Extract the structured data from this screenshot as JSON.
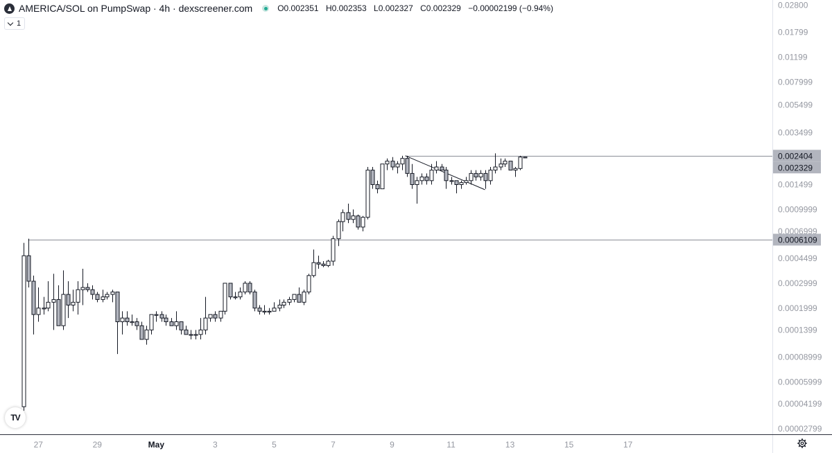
{
  "header": {
    "title": "AMERICA/SOL on PumpSwap · 4h · dexscreener.com",
    "ohlc": {
      "o_label": "O",
      "o": "0.002351",
      "h_label": "H",
      "h": "0.002353",
      "l_label": "L",
      "l": "0.002327",
      "c_label": "C",
      "c": "0.002329",
      "change": "−0.00002199 (−0.94%)"
    }
  },
  "indicator_button": {
    "count": "1"
  },
  "tv_logo": {
    "text": "TV"
  },
  "icons": {
    "logo": "app-logo-icon",
    "settings": "gear-icon",
    "status": "market-status-icon"
  },
  "colors": {
    "candle_up": "#ffffff",
    "candle_down": "#b2b5be",
    "outline": "#131722",
    "axis_text": "#9598a1",
    "price_tag": "#b2b5be"
  },
  "chart_data": {
    "type": "candlestick",
    "interval": "4h",
    "y_scale": "log",
    "y_ticks": [
      "0.02800",
      "0.01799",
      "0.01199",
      "0.007999",
      "0.005499",
      "0.003499",
      "0.001499",
      "0.0009999",
      "0.0006999",
      "0.0004499",
      "0.0002999",
      "0.0001999",
      "0.0001399",
      "0.00008999",
      "0.00005999",
      "0.00004199",
      "0.00002799"
    ],
    "y_tick_values": [
      0.028,
      0.01799,
      0.01199,
      0.007999,
      0.005499,
      0.003499,
      0.001499,
      0.0009999,
      0.0006999,
      0.0004499,
      0.0002999,
      0.0001999,
      0.0001399,
      8.999e-05,
      5.999e-05,
      4.199e-05,
      2.799e-05
    ],
    "x_ticks": [
      {
        "label": "27",
        "day": 27.0
      },
      {
        "label": "29",
        "day": 29.0
      },
      {
        "label": "May",
        "day": 31.0
      },
      {
        "label": "3",
        "day": 33.0
      },
      {
        "label": "5",
        "day": 35.0
      },
      {
        "label": "7",
        "day": 37.0
      },
      {
        "label": "9",
        "day": 39.0
      },
      {
        "label": "11",
        "day": 41.0
      },
      {
        "label": "13",
        "day": 43.0
      },
      {
        "label": "15",
        "day": 45.0
      },
      {
        "label": "17",
        "day": 47.0
      }
    ],
    "ylim": [
      2.55e-05,
      0.0305
    ],
    "xlim": [
      25.7,
      51.9
    ],
    "price_tags": [
      {
        "label": "0.002404",
        "value": 0.002404
      },
      {
        "label": "0.002329",
        "value": 0.002329
      },
      {
        "label": "0.0006109",
        "value": 0.0006109
      }
    ],
    "horizontal_lines": [
      {
        "value": 0.0006109,
        "from_day": 26.65
      },
      {
        "value": 0.002404,
        "from_day": 39.45
      }
    ],
    "trend_lines": [
      {
        "from": [
          39.45,
          0.002404
        ],
        "to": [
          42.15,
          0.00138
        ]
      }
    ],
    "candles": [
      {
        "day": 26.5,
        "o": 4e-05,
        "h": 0.00058,
        "l": 3.75e-05,
        "c": 0.00047
      },
      {
        "day": 26.67,
        "o": 0.00047,
        "h": 0.00062,
        "l": 0.00028,
        "c": 0.00031
      },
      {
        "day": 26.83,
        "o": 0.00031,
        "h": 0.00034,
        "l": 0.00013,
        "c": 0.00018
      },
      {
        "day": 27.0,
        "o": 0.00018,
        "h": 0.00028,
        "l": 0.00016,
        "c": 0.0002
      },
      {
        "day": 27.17,
        "o": 0.0002,
        "h": 0.00024,
        "l": 0.00018,
        "c": 0.0002
      },
      {
        "day": 27.33,
        "o": 0.0002,
        "h": 0.00031,
        "l": 0.00019,
        "c": 0.00022
      },
      {
        "day": 27.5,
        "o": 0.00022,
        "h": 0.00035,
        "l": 0.00014,
        "c": 0.00023
      },
      {
        "day": 27.67,
        "o": 0.00023,
        "h": 0.00029,
        "l": 0.00015,
        "c": 0.00015
      },
      {
        "day": 27.83,
        "o": 0.00015,
        "h": 0.00037,
        "l": 0.00014,
        "c": 0.00025
      },
      {
        "day": 28.0,
        "o": 0.00025,
        "h": 0.00031,
        "l": 0.00017,
        "c": 0.00021
      },
      {
        "day": 28.17,
        "o": 0.00021,
        "h": 0.00027,
        "l": 0.00019,
        "c": 0.00022
      },
      {
        "day": 28.33,
        "o": 0.00022,
        "h": 0.00031,
        "l": 0.00018,
        "c": 0.00027
      },
      {
        "day": 28.5,
        "o": 0.00027,
        "h": 0.00038,
        "l": 0.00021,
        "c": 0.00028
      },
      {
        "day": 28.67,
        "o": 0.00028,
        "h": 0.0003,
        "l": 0.00026,
        "c": 0.00027
      },
      {
        "day": 28.83,
        "o": 0.00027,
        "h": 0.00029,
        "l": 0.00023,
        "c": 0.00025
      },
      {
        "day": 29.0,
        "o": 0.00025,
        "h": 0.00026,
        "l": 0.00022,
        "c": 0.00023
      },
      {
        "day": 29.17,
        "o": 0.00023,
        "h": 0.00027,
        "l": 0.00022,
        "c": 0.00024
      },
      {
        "day": 29.33,
        "o": 0.00024,
        "h": 0.00026,
        "l": 0.00023,
        "c": 0.00025
      },
      {
        "day": 29.5,
        "o": 0.00025,
        "h": 0.00027,
        "l": 0.00022,
        "c": 0.00026
      },
      {
        "day": 29.67,
        "o": 0.00026,
        "h": 0.00026,
        "l": 9.45e-05,
        "c": 0.00016
      },
      {
        "day": 29.83,
        "o": 0.00016,
        "h": 0.00019,
        "l": 0.00013,
        "c": 0.00017
      },
      {
        "day": 30.0,
        "o": 0.00017,
        "h": 0.00019,
        "l": 0.00015,
        "c": 0.00016
      },
      {
        "day": 30.17,
        "o": 0.00016,
        "h": 0.00018,
        "l": 0.00015,
        "c": 0.00016
      },
      {
        "day": 30.33,
        "o": 0.00016,
        "h": 0.00017,
        "l": 0.00014,
        "c": 0.00015
      },
      {
        "day": 30.5,
        "o": 0.00015,
        "h": 0.00016,
        "l": 0.00012,
        "c": 0.00012
      },
      {
        "day": 30.67,
        "o": 0.00012,
        "h": 0.00015,
        "l": 0.00011,
        "c": 0.00014
      },
      {
        "day": 30.83,
        "o": 0.00014,
        "h": 0.00018,
        "l": 0.00013,
        "c": 0.00018
      },
      {
        "day": 31.0,
        "o": 0.00018,
        "h": 0.00019,
        "l": 0.00016,
        "c": 0.00018
      },
      {
        "day": 31.17,
        "o": 0.00018,
        "h": 0.00019,
        "l": 0.00016,
        "c": 0.00017
      },
      {
        "day": 31.33,
        "o": 0.00017,
        "h": 0.00018,
        "l": 0.00015,
        "c": 0.00016
      },
      {
        "day": 31.5,
        "o": 0.00016,
        "h": 0.00017,
        "l": 0.00015,
        "c": 0.00015
      },
      {
        "day": 31.67,
        "o": 0.00015,
        "h": 0.00019,
        "l": 0.00014,
        "c": 0.00016
      },
      {
        "day": 31.83,
        "o": 0.00016,
        "h": 0.00016,
        "l": 0.00013,
        "c": 0.00014
      },
      {
        "day": 32.0,
        "o": 0.00014,
        "h": 0.00015,
        "l": 0.00013,
        "c": 0.00013
      },
      {
        "day": 32.17,
        "o": 0.00013,
        "h": 0.00014,
        "l": 0.00012,
        "c": 0.00013
      },
      {
        "day": 32.33,
        "o": 0.00013,
        "h": 0.00014,
        "l": 0.00012,
        "c": 0.00013
      },
      {
        "day": 32.5,
        "o": 0.00013,
        "h": 0.00017,
        "l": 0.00012,
        "c": 0.00014
      },
      {
        "day": 32.67,
        "o": 0.00014,
        "h": 0.00024,
        "l": 0.00013,
        "c": 0.00017
      },
      {
        "day": 32.83,
        "o": 0.00017,
        "h": 0.00018,
        "l": 0.00016,
        "c": 0.00018
      },
      {
        "day": 33.0,
        "o": 0.00018,
        "h": 0.00019,
        "l": 0.00016,
        "c": 0.00017
      },
      {
        "day": 33.17,
        "o": 0.00017,
        "h": 0.00019,
        "l": 0.00016,
        "c": 0.00019
      },
      {
        "day": 33.33,
        "o": 0.00019,
        "h": 0.0003,
        "l": 0.00018,
        "c": 0.0003
      },
      {
        "day": 33.5,
        "o": 0.0003,
        "h": 0.0003,
        "l": 0.00023,
        "c": 0.00024
      },
      {
        "day": 33.67,
        "o": 0.00024,
        "h": 0.00026,
        "l": 0.00023,
        "c": 0.00024
      },
      {
        "day": 33.83,
        "o": 0.00024,
        "h": 0.00028,
        "l": 0.00023,
        "c": 0.00026
      },
      {
        "day": 34.0,
        "o": 0.00026,
        "h": 0.00031,
        "l": 0.00025,
        "c": 0.0003
      },
      {
        "day": 34.17,
        "o": 0.0003,
        "h": 0.00031,
        "l": 0.00025,
        "c": 0.00026
      },
      {
        "day": 34.33,
        "o": 0.00026,
        "h": 0.00027,
        "l": 0.00019,
        "c": 0.0002
      },
      {
        "day": 34.5,
        "o": 0.0002,
        "h": 0.00021,
        "l": 0.00018,
        "c": 0.00019
      },
      {
        "day": 34.67,
        "o": 0.00019,
        "h": 0.00021,
        "l": 0.00018,
        "c": 0.00019
      },
      {
        "day": 34.83,
        "o": 0.00019,
        "h": 0.0002,
        "l": 0.00018,
        "c": 0.00019
      },
      {
        "day": 35.0,
        "o": 0.00019,
        "h": 0.00022,
        "l": 0.00019,
        "c": 0.0002
      },
      {
        "day": 35.17,
        "o": 0.0002,
        "h": 0.00023,
        "l": 0.00019,
        "c": 0.00021
      },
      {
        "day": 35.33,
        "o": 0.00021,
        "h": 0.00023,
        "l": 0.0002,
        "c": 0.00022
      },
      {
        "day": 35.5,
        "o": 0.00022,
        "h": 0.00024,
        "l": 0.00021,
        "c": 0.00023
      },
      {
        "day": 35.67,
        "o": 0.00023,
        "h": 0.00025,
        "l": 0.00022,
        "c": 0.00025
      },
      {
        "day": 35.83,
        "o": 0.00025,
        "h": 0.00028,
        "l": 0.00022,
        "c": 0.00022
      },
      {
        "day": 36.0,
        "o": 0.00022,
        "h": 0.00027,
        "l": 0.00021,
        "c": 0.00026
      },
      {
        "day": 36.17,
        "o": 0.00026,
        "h": 0.00035,
        "l": 0.00025,
        "c": 0.00034
      },
      {
        "day": 36.33,
        "o": 0.00034,
        "h": 0.00052,
        "l": 0.00033,
        "c": 0.00042
      },
      {
        "day": 36.5,
        "o": 0.00042,
        "h": 0.00047,
        "l": 0.00038,
        "c": 0.00041
      },
      {
        "day": 36.67,
        "o": 0.00041,
        "h": 0.00043,
        "l": 0.00039,
        "c": 0.0004
      },
      {
        "day": 36.83,
        "o": 0.0004,
        "h": 0.00044,
        "l": 0.00039,
        "c": 0.00043
      },
      {
        "day": 37.0,
        "o": 0.00043,
        "h": 0.00065,
        "l": 0.0004,
        "c": 0.00062
      },
      {
        "day": 37.17,
        "o": 0.00062,
        "h": 0.00085,
        "l": 0.00055,
        "c": 0.00082
      },
      {
        "day": 37.33,
        "o": 0.00082,
        "h": 0.001,
        "l": 0.0007,
        "c": 0.00095
      },
      {
        "day": 37.5,
        "o": 0.00095,
        "h": 0.0011,
        "l": 0.0008,
        "c": 0.00085
      },
      {
        "day": 37.67,
        "o": 0.00085,
        "h": 0.001,
        "l": 0.0008,
        "c": 0.0009
      },
      {
        "day": 37.83,
        "o": 0.0009,
        "h": 0.00092,
        "l": 0.00072,
        "c": 0.00075
      },
      {
        "day": 38.0,
        "o": 0.00075,
        "h": 0.0009,
        "l": 0.0007,
        "c": 0.00088
      },
      {
        "day": 38.17,
        "o": 0.00088,
        "h": 0.002,
        "l": 0.00085,
        "c": 0.0019
      },
      {
        "day": 38.33,
        "o": 0.0019,
        "h": 0.002,
        "l": 0.0014,
        "c": 0.0015
      },
      {
        "day": 38.5,
        "o": 0.0015,
        "h": 0.0016,
        "l": 0.0013,
        "c": 0.0014
      },
      {
        "day": 38.67,
        "o": 0.0014,
        "h": 0.0021,
        "l": 0.0014,
        "c": 0.0021
      },
      {
        "day": 38.83,
        "o": 0.0021,
        "h": 0.0023,
        "l": 0.0019,
        "c": 0.0022
      },
      {
        "day": 39.0,
        "o": 0.0022,
        "h": 0.00235,
        "l": 0.0019,
        "c": 0.002
      },
      {
        "day": 39.17,
        "o": 0.002,
        "h": 0.0022,
        "l": 0.0018,
        "c": 0.0021
      },
      {
        "day": 39.33,
        "o": 0.0021,
        "h": 0.0024,
        "l": 0.0019,
        "c": 0.0023
      },
      {
        "day": 39.5,
        "o": 0.0023,
        "h": 0.0024,
        "l": 0.0017,
        "c": 0.0018
      },
      {
        "day": 39.67,
        "o": 0.0018,
        "h": 0.0021,
        "l": 0.0014,
        "c": 0.0015
      },
      {
        "day": 39.83,
        "o": 0.0015,
        "h": 0.0017,
        "l": 0.0011,
        "c": 0.0016
      },
      {
        "day": 40.0,
        "o": 0.0016,
        "h": 0.0018,
        "l": 0.0015,
        "c": 0.0017
      },
      {
        "day": 40.17,
        "o": 0.0017,
        "h": 0.0018,
        "l": 0.0015,
        "c": 0.0016
      },
      {
        "day": 40.33,
        "o": 0.0016,
        "h": 0.0021,
        "l": 0.0015,
        "c": 0.0019
      },
      {
        "day": 40.5,
        "o": 0.0019,
        "h": 0.0022,
        "l": 0.0018,
        "c": 0.002
      },
      {
        "day": 40.67,
        "o": 0.002,
        "h": 0.0021,
        "l": 0.0019,
        "c": 0.0019
      },
      {
        "day": 40.83,
        "o": 0.0019,
        "h": 0.002,
        "l": 0.0014,
        "c": 0.0016
      },
      {
        "day": 41.0,
        "o": 0.0016,
        "h": 0.0017,
        "l": 0.0015,
        "c": 0.0016
      },
      {
        "day": 41.17,
        "o": 0.0016,
        "h": 0.0016,
        "l": 0.0013,
        "c": 0.0015
      },
      {
        "day": 41.33,
        "o": 0.0015,
        "h": 0.0016,
        "l": 0.0014,
        "c": 0.00155
      },
      {
        "day": 41.5,
        "o": 0.00155,
        "h": 0.0017,
        "l": 0.0015,
        "c": 0.0016
      },
      {
        "day": 41.67,
        "o": 0.0016,
        "h": 0.0019,
        "l": 0.0015,
        "c": 0.0018
      },
      {
        "day": 41.83,
        "o": 0.0018,
        "h": 0.0019,
        "l": 0.0016,
        "c": 0.0017
      },
      {
        "day": 42.0,
        "o": 0.0017,
        "h": 0.0019,
        "l": 0.0016,
        "c": 0.0018
      },
      {
        "day": 42.17,
        "o": 0.0018,
        "h": 0.0019,
        "l": 0.0014,
        "c": 0.0016
      },
      {
        "day": 42.33,
        "o": 0.0016,
        "h": 0.002,
        "l": 0.0015,
        "c": 0.0019
      },
      {
        "day": 42.5,
        "o": 0.0019,
        "h": 0.0025,
        "l": 0.0018,
        "c": 0.002
      },
      {
        "day": 42.67,
        "o": 0.002,
        "h": 0.0023,
        "l": 0.0019,
        "c": 0.0021
      },
      {
        "day": 42.83,
        "o": 0.0021,
        "h": 0.0023,
        "l": 0.002,
        "c": 0.0022
      },
      {
        "day": 43.0,
        "o": 0.0022,
        "h": 0.0022,
        "l": 0.0019,
        "c": 0.0019
      },
      {
        "day": 43.17,
        "o": 0.0019,
        "h": 0.002,
        "l": 0.0017,
        "c": 0.00195
      },
      {
        "day": 43.33,
        "o": 0.00195,
        "h": 0.0024,
        "l": 0.0019,
        "c": 0.002351
      },
      {
        "day": 43.5,
        "o": 0.002351,
        "h": 0.002353,
        "l": 0.002327,
        "c": 0.002329
      }
    ]
  }
}
